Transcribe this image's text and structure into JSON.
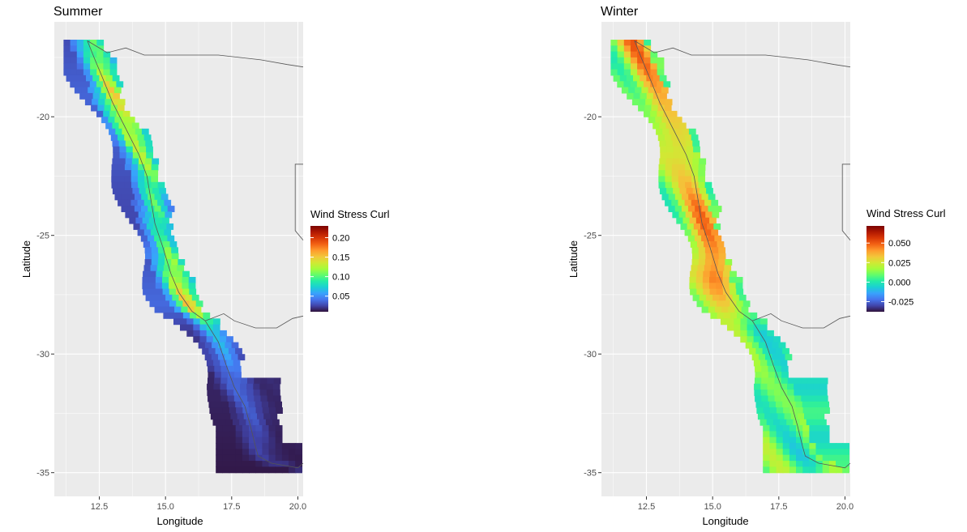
{
  "chart_data": [
    {
      "type": "heatmap",
      "title": "Summer",
      "xlabel": "Longitude",
      "ylabel": "Latitude",
      "xlim": [
        10.8,
        20.2
      ],
      "ylim": [
        -36,
        -16
      ],
      "x_ticks": [
        "12.5",
        "15.0",
        "17.5",
        "20.0"
      ],
      "x_tick_values": [
        12.5,
        15.0,
        17.5,
        20.0
      ],
      "y_ticks": [
        "-20",
        "-25",
        "-30",
        "-35"
      ],
      "y_tick_values": [
        -20,
        -25,
        -30,
        -35
      ],
      "grid": true,
      "legend": {
        "title": "Wind Stress Curl",
        "placement": "right",
        "labels": [
          "0.20",
          "0.15",
          "0.10",
          "0.05"
        ],
        "label_values": [
          0.2,
          0.15,
          0.1,
          0.05
        ],
        "range": [
          0.01,
          0.23
        ]
      },
      "palette": [
        "#30123b",
        "#4145ab",
        "#4675ed",
        "#39a2fc",
        "#1bcfd4",
        "#24eca6",
        "#61fc6c",
        "#a4fc3b",
        "#d1e834",
        "#f3c63a",
        "#fe9b2d",
        "#f36315",
        "#d93806",
        "#b11901",
        "#7a0403"
      ],
      "coast_profile": [
        {
          "lat": -16.8,
          "lon": 12.0,
          "value": 0.1
        },
        {
          "lat": -19.0,
          "lon": 12.9,
          "value": 0.14
        },
        {
          "lat": -21.0,
          "lon": 13.9,
          "value": 0.13
        },
        {
          "lat": -23.0,
          "lon": 14.4,
          "value": 0.1
        },
        {
          "lat": -25.0,
          "lon": 14.9,
          "value": 0.09
        },
        {
          "lat": -26.8,
          "lon": 15.4,
          "value": 0.13
        },
        {
          "lat": -28.0,
          "lon": 16.2,
          "value": 0.15
        },
        {
          "lat": -29.0,
          "lon": 16.8,
          "value": 0.07
        },
        {
          "lat": -31.0,
          "lon": 17.6,
          "value": 0.04
        },
        {
          "lat": -33.0,
          "lon": 18.3,
          "value": 0.03
        },
        {
          "lat": -35.0,
          "lon": 19.5,
          "value": 0.02
        }
      ]
    },
    {
      "type": "heatmap",
      "title": "Winter",
      "xlabel": "Longitude",
      "ylabel": "Latitude",
      "xlim": [
        10.8,
        20.2
      ],
      "ylim": [
        -36,
        -16
      ],
      "x_ticks": [
        "12.5",
        "15.0",
        "17.5",
        "20.0"
      ],
      "x_tick_values": [
        12.5,
        15.0,
        17.5,
        20.0
      ],
      "y_ticks": [
        "-20",
        "-25",
        "-30",
        "-35"
      ],
      "y_tick_values": [
        -20,
        -25,
        -30,
        -35
      ],
      "grid": true,
      "legend": {
        "title": "Wind Stress Curl",
        "placement": "right",
        "labels": [
          "0.050",
          "0.025",
          "0.000",
          "-0.025"
        ],
        "label_values": [
          0.05,
          0.025,
          0.0,
          -0.025
        ],
        "range": [
          -0.038,
          0.072
        ]
      },
      "palette": [
        "#30123b",
        "#4145ab",
        "#4675ed",
        "#39a2fc",
        "#1bcfd4",
        "#24eca6",
        "#61fc6c",
        "#a4fc3b",
        "#d1e834",
        "#f3c63a",
        "#fe9b2d",
        "#f36315",
        "#d93806",
        "#b11901",
        "#7a0403"
      ],
      "coast_profile": [
        {
          "lat": -16.8,
          "lon": 12.0,
          "value": 0.04
        },
        {
          "lat": -19.0,
          "lon": 12.9,
          "value": 0.035
        },
        {
          "lat": -21.0,
          "lon": 13.9,
          "value": 0.04
        },
        {
          "lat": -23.0,
          "lon": 14.4,
          "value": 0.03
        },
        {
          "lat": -25.0,
          "lon": 14.9,
          "value": 0.045
        },
        {
          "lat": -26.8,
          "lon": 15.4,
          "value": 0.055
        },
        {
          "lat": -28.0,
          "lon": 16.2,
          "value": 0.03
        },
        {
          "lat": -29.0,
          "lon": 16.8,
          "value": 0.005
        },
        {
          "lat": -31.0,
          "lon": 17.6,
          "value": 0.0
        },
        {
          "lat": -33.0,
          "lon": 18.3,
          "value": 0.002
        },
        {
          "lat": -35.0,
          "lon": 19.5,
          "value": 0.003
        }
      ]
    }
  ]
}
